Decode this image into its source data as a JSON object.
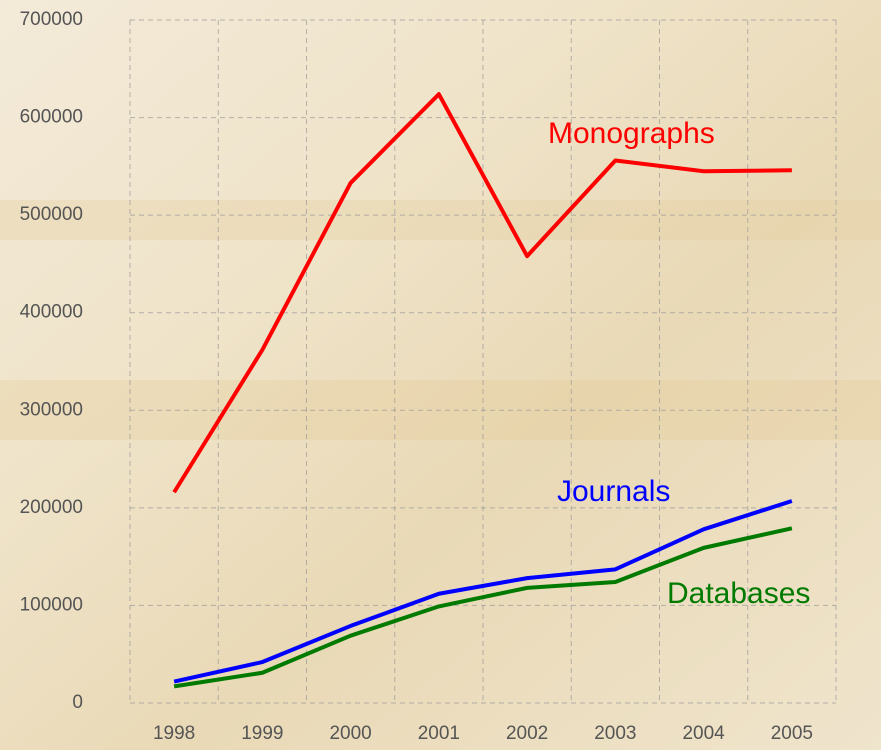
{
  "chart_data": {
    "type": "line",
    "categories": [
      "1998",
      "1999",
      "2000",
      "2001",
      "2002",
      "2003",
      "2004",
      "2005"
    ],
    "series": [
      {
        "name": "Monographs",
        "color": "#ff0000",
        "values": [
          216000,
          362000,
          533000,
          624000,
          458000,
          556000,
          545000,
          546000
        ]
      },
      {
        "name": "Journals",
        "color": "#0000ff",
        "values": [
          22000,
          42000,
          79000,
          112000,
          128000,
          137000,
          178000,
          207000
        ]
      },
      {
        "name": "Databases",
        "color": "#007a00",
        "values": [
          17000,
          31000,
          69000,
          99000,
          118000,
          124000,
          159000,
          179000
        ]
      }
    ],
    "ylim": [
      0,
      700000
    ],
    "yticks": [
      0,
      100000,
      200000,
      300000,
      400000,
      500000,
      600000,
      700000
    ],
    "grid": true
  }
}
